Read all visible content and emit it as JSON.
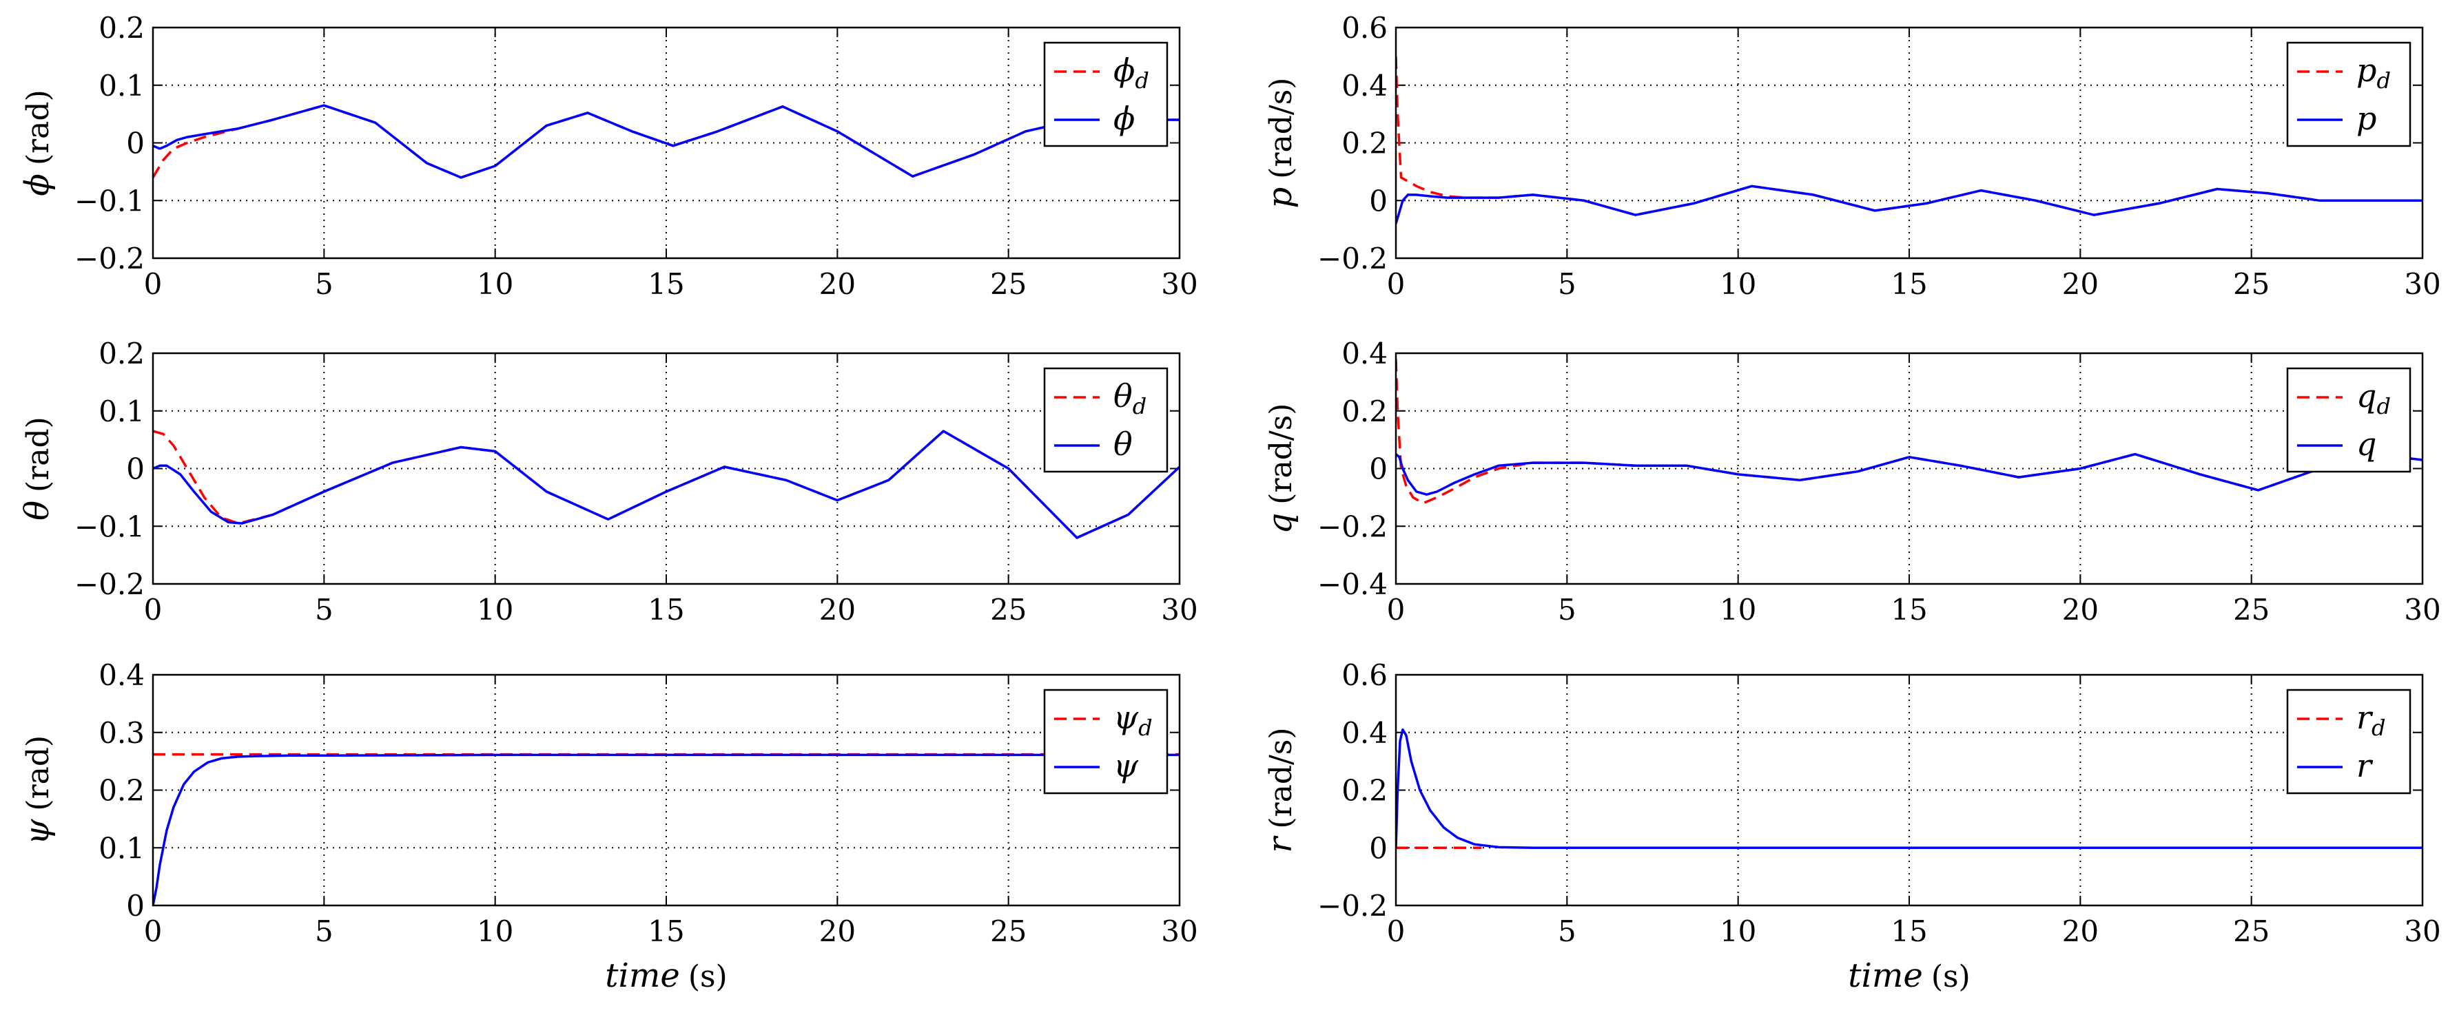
{
  "chart_data": [
    {
      "id": "phi",
      "type": "line",
      "ylabel_symbol": "ϕ",
      "ylabel_unit": "(rad)",
      "xlim": [
        0,
        30
      ],
      "ylim": [
        -0.2,
        0.2
      ],
      "xticks": [
        "0",
        "5",
        "10",
        "15",
        "20",
        "25",
        "30"
      ],
      "yticks": [
        "−0.2",
        "−0.1",
        "0",
        "0.1",
        "0.2"
      ],
      "ytick_values": [
        -0.2,
        -0.1,
        0,
        0.1,
        0.2
      ],
      "xlabel": "",
      "grid": true,
      "legend": "top-right",
      "series": [
        {
          "name": "ϕ",
          "sub": "d",
          "style": "dashed",
          "color": "#ff0000",
          "x": [
            0,
            0.3,
            0.6,
            1.0,
            1.5,
            2.5,
            3.5,
            5.0,
            6.5,
            8.0,
            9.0,
            10.0,
            11.5,
            12.7,
            14.0,
            15.2,
            16.5,
            18.4,
            20.0,
            22.2,
            24.0,
            25.5,
            27.0,
            28.5,
            30
          ],
          "y": [
            -0.06,
            -0.03,
            -0.01,
            0.0,
            0.01,
            0.025,
            0.04,
            0.065,
            0.035,
            -0.035,
            -0.06,
            -0.04,
            0.03,
            0.052,
            0.02,
            -0.005,
            0.02,
            0.063,
            0.02,
            -0.058,
            -0.02,
            0.02,
            0.04,
            0.04,
            0.04
          ]
        },
        {
          "name": "ϕ",
          "sub": "",
          "style": "solid",
          "color": "#0000ff",
          "x": [
            0,
            0.2,
            0.4,
            0.7,
            1.0,
            1.5,
            2.5,
            3.5,
            5.0,
            6.5,
            8.0,
            9.0,
            10.0,
            11.5,
            12.7,
            14.0,
            15.2,
            16.5,
            18.4,
            20.0,
            22.2,
            24.0,
            25.5,
            27.0,
            28.5,
            30
          ],
          "y": [
            -0.005,
            -0.01,
            -0.005,
            0.005,
            0.01,
            0.015,
            0.025,
            0.04,
            0.065,
            0.035,
            -0.035,
            -0.06,
            -0.04,
            0.03,
            0.052,
            0.02,
            -0.005,
            0.02,
            0.063,
            0.02,
            -0.058,
            -0.02,
            0.02,
            0.04,
            0.04,
            0.04
          ]
        }
      ]
    },
    {
      "id": "p",
      "type": "line",
      "ylabel_symbol": "p",
      "ylabel_unit": "(rad/s)",
      "xlim": [
        0,
        30
      ],
      "ylim": [
        -0.2,
        0.6
      ],
      "xticks": [
        "0",
        "5",
        "10",
        "15",
        "20",
        "25",
        "30"
      ],
      "yticks": [
        "−0.2",
        "0",
        "0.2",
        "0.4",
        "0.6"
      ],
      "ytick_values": [
        -0.2,
        0,
        0.2,
        0.4,
        0.6
      ],
      "xlabel": "",
      "grid": true,
      "legend": "top-right",
      "series": [
        {
          "name": "p",
          "sub": "d",
          "style": "dashed",
          "color": "#ff0000",
          "x": [
            0,
            0.05,
            0.15,
            0.3,
            0.6,
            1.0,
            1.5,
            2.0,
            3.0,
            4.0,
            5.5,
            7.0,
            8.7,
            10.4,
            12.2,
            14.0,
            15.5,
            17.1,
            18.7,
            20.4,
            22.3,
            24.0,
            25.5,
            27.0,
            28.5,
            30
          ],
          "y": [
            0.5,
            0.3,
            0.08,
            0.07,
            0.05,
            0.03,
            0.015,
            0.01,
            0.01,
            0.02,
            0.0,
            -0.05,
            -0.01,
            0.05,
            0.02,
            -0.035,
            -0.01,
            0.035,
            0.0,
            -0.05,
            -0.01,
            0.04,
            0.025,
            0.0,
            0.0,
            0.0
          ]
        },
        {
          "name": "p",
          "sub": "",
          "style": "solid",
          "color": "#0000ff",
          "x": [
            0,
            0.1,
            0.2,
            0.35,
            0.6,
            1.0,
            1.5,
            2.0,
            3.0,
            4.0,
            5.5,
            7.0,
            8.7,
            10.4,
            12.2,
            14.0,
            15.5,
            17.1,
            18.7,
            20.4,
            22.3,
            24.0,
            25.5,
            27.0,
            28.5,
            30
          ],
          "y": [
            -0.08,
            -0.04,
            0.0,
            0.02,
            0.02,
            0.015,
            0.01,
            0.01,
            0.01,
            0.02,
            0.0,
            -0.05,
            -0.01,
            0.05,
            0.02,
            -0.035,
            -0.01,
            0.035,
            0.0,
            -0.05,
            -0.01,
            0.04,
            0.025,
            0.0,
            0.0,
            0.0
          ]
        }
      ]
    },
    {
      "id": "theta",
      "type": "line",
      "ylabel_symbol": "θ",
      "ylabel_unit": "(rad)",
      "xlim": [
        0,
        30
      ],
      "ylim": [
        -0.2,
        0.2
      ],
      "xticks": [
        "0",
        "5",
        "10",
        "15",
        "20",
        "25",
        "30"
      ],
      "yticks": [
        "−0.2",
        "−0.1",
        "0",
        "0.1",
        "0.2"
      ],
      "ytick_values": [
        -0.2,
        -0.1,
        0,
        0.1,
        0.2
      ],
      "xlabel": "",
      "grid": true,
      "legend": "top-right",
      "series": [
        {
          "name": "θ",
          "sub": "d",
          "style": "dashed",
          "color": "#ff0000",
          "x": [
            0,
            0.3,
            0.6,
            1.0,
            1.5,
            2.0,
            2.5,
            3.5,
            5.0,
            7.0,
            9.0,
            10.0,
            11.5,
            13.3,
            15.0,
            16.7,
            18.5,
            20.0,
            21.5,
            23.1,
            25.0,
            27.0,
            28.5,
            30
          ],
          "y": [
            0.065,
            0.06,
            0.04,
            0.0,
            -0.05,
            -0.085,
            -0.095,
            -0.08,
            -0.04,
            0.01,
            0.037,
            0.03,
            -0.04,
            -0.088,
            -0.04,
            0.003,
            -0.02,
            -0.055,
            -0.02,
            0.065,
            0.0,
            -0.12,
            -0.08,
            0.003
          ]
        },
        {
          "name": "θ",
          "sub": "",
          "style": "solid",
          "color": "#0000ff",
          "x": [
            0,
            0.2,
            0.4,
            0.8,
            1.2,
            1.7,
            2.2,
            2.6,
            3.5,
            5.0,
            7.0,
            9.0,
            10.0,
            11.5,
            13.3,
            15.0,
            16.7,
            18.5,
            20.0,
            21.5,
            23.1,
            25.0,
            27.0,
            28.5,
            30
          ],
          "y": [
            0.0,
            0.005,
            0.005,
            -0.01,
            -0.04,
            -0.075,
            -0.093,
            -0.095,
            -0.08,
            -0.04,
            0.01,
            0.037,
            0.03,
            -0.04,
            -0.088,
            -0.04,
            0.003,
            -0.02,
            -0.055,
            -0.02,
            0.065,
            0.0,
            -0.12,
            -0.08,
            0.003
          ]
        }
      ]
    },
    {
      "id": "q",
      "type": "line",
      "ylabel_symbol": "q",
      "ylabel_unit": "(rad/s)",
      "xlim": [
        0,
        30
      ],
      "ylim": [
        -0.4,
        0.4
      ],
      "xticks": [
        "0",
        "5",
        "10",
        "15",
        "20",
        "25",
        "30"
      ],
      "yticks": [
        "−0.4",
        "−0.2",
        "0",
        "0.2",
        "0.4"
      ],
      "ytick_values": [
        -0.4,
        -0.2,
        0,
        0.2,
        0.4
      ],
      "xlabel": "",
      "grid": true,
      "legend": "top-right",
      "series": [
        {
          "name": "q",
          "sub": "d",
          "style": "dashed",
          "color": "#ff0000",
          "x": [
            0,
            0.05,
            0.15,
            0.3,
            0.5,
            0.8,
            1.2,
            1.7,
            2.3,
            3.0,
            4.0,
            5.5,
            7.0,
            8.5,
            10.0,
            11.8,
            13.5,
            15.0,
            16.5,
            18.2,
            20.0,
            21.6,
            23.5,
            25.2,
            27.0,
            28.5,
            30
          ],
          "y": [
            0.38,
            0.2,
            0.0,
            -0.06,
            -0.1,
            -0.12,
            -0.1,
            -0.07,
            -0.03,
            0.0,
            0.02,
            0.02,
            0.01,
            0.01,
            -0.02,
            -0.04,
            -0.01,
            0.04,
            0.01,
            -0.03,
            0.0,
            0.05,
            -0.02,
            -0.075,
            0.0,
            0.05,
            0.03
          ]
        },
        {
          "name": "q",
          "sub": "",
          "style": "solid",
          "color": "#0000ff",
          "x": [
            0,
            0.1,
            0.2,
            0.35,
            0.6,
            0.9,
            1.2,
            1.7,
            2.3,
            3.0,
            4.0,
            5.5,
            7.0,
            8.5,
            10.0,
            11.8,
            13.5,
            15.0,
            16.5,
            18.2,
            20.0,
            21.6,
            23.5,
            25.2,
            27.0,
            28.5,
            30
          ],
          "y": [
            0.05,
            0.04,
            0.0,
            -0.04,
            -0.08,
            -0.09,
            -0.08,
            -0.05,
            -0.02,
            0.01,
            0.02,
            0.02,
            0.01,
            0.01,
            -0.02,
            -0.04,
            -0.01,
            0.04,
            0.01,
            -0.03,
            0.0,
            0.05,
            -0.02,
            -0.075,
            0.0,
            0.05,
            0.03
          ]
        }
      ]
    },
    {
      "id": "psi",
      "type": "line",
      "ylabel_symbol": "ψ",
      "ylabel_unit": "(rad)",
      "xlim": [
        0,
        30
      ],
      "ylim": [
        0,
        0.4
      ],
      "xticks": [
        "0",
        "5",
        "10",
        "15",
        "20",
        "25",
        "30"
      ],
      "yticks": [
        "0",
        "0.1",
        "0.2",
        "0.3",
        "0.4"
      ],
      "ytick_values": [
        0,
        0.1,
        0.2,
        0.3,
        0.4
      ],
      "xlabel": "time",
      "xlabel_unit": "(s)",
      "grid": true,
      "legend": "top-right",
      "series": [
        {
          "name": "ψ",
          "sub": "d",
          "style": "dashed",
          "color": "#ff0000",
          "x": [
            0,
            30
          ],
          "y": [
            0.262,
            0.262
          ]
        },
        {
          "name": "ψ",
          "sub": "",
          "style": "solid",
          "color": "#0000ff",
          "x": [
            0,
            0.1,
            0.2,
            0.4,
            0.6,
            0.9,
            1.2,
            1.6,
            2.0,
            2.5,
            3.0,
            4.0,
            5.0,
            10.0,
            20.0,
            30
          ],
          "y": [
            0.0,
            0.03,
            0.07,
            0.13,
            0.17,
            0.21,
            0.232,
            0.248,
            0.255,
            0.258,
            0.259,
            0.26,
            0.26,
            0.261,
            0.261,
            0.261
          ]
        }
      ]
    },
    {
      "id": "r",
      "type": "line",
      "ylabel_symbol": "r",
      "ylabel_unit": "(rad/s)",
      "xlim": [
        0,
        30
      ],
      "ylim": [
        -0.2,
        0.6
      ],
      "xticks": [
        "0",
        "5",
        "10",
        "15",
        "20",
        "25",
        "30"
      ],
      "yticks": [
        "−0.2",
        "0",
        "0.2",
        "0.4",
        "0.6"
      ],
      "ytick_values": [
        -0.2,
        0,
        0.2,
        0.4,
        0.6
      ],
      "xlabel": "time",
      "xlabel_unit": "(s)",
      "grid": true,
      "legend": "top-right",
      "series": [
        {
          "name": "r",
          "sub": "d",
          "style": "dashed",
          "color": "#ff0000",
          "x": [
            0,
            2.5
          ],
          "y": [
            0.0,
            0.0
          ]
        },
        {
          "name": "r",
          "sub": "",
          "style": "solid",
          "color": "#0000ff",
          "x": [
            0,
            0.05,
            0.12,
            0.2,
            0.3,
            0.45,
            0.7,
            1.0,
            1.4,
            1.8,
            2.3,
            3.0,
            4.0,
            10.0,
            20.0,
            30
          ],
          "y": [
            0.0,
            0.2,
            0.37,
            0.41,
            0.39,
            0.3,
            0.2,
            0.13,
            0.07,
            0.035,
            0.012,
            0.002,
            0.0,
            0.0,
            0.0,
            0.0
          ]
        }
      ]
    }
  ]
}
